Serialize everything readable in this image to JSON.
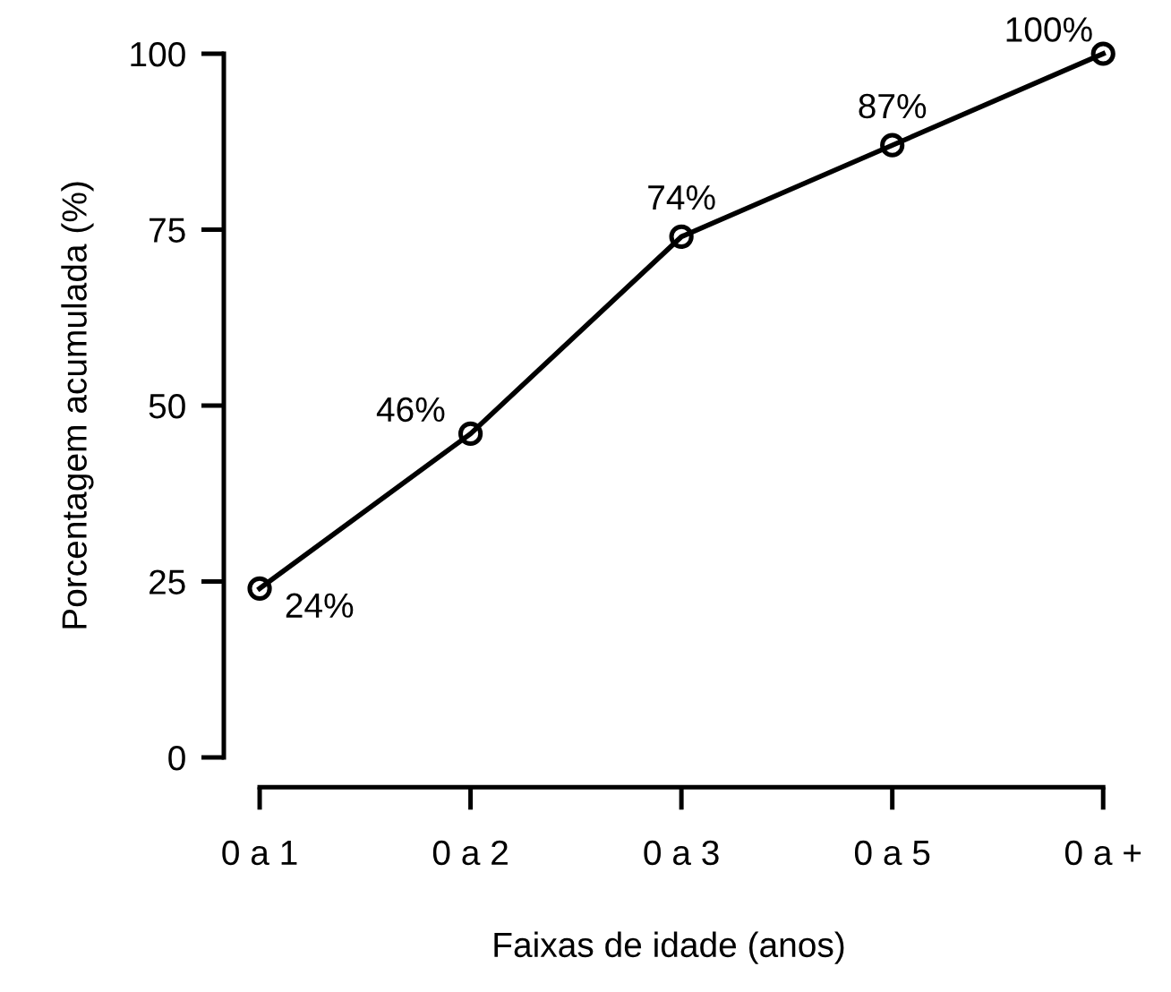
{
  "chart_data": {
    "type": "line",
    "xlabel": "Faixas de idade (anos)",
    "ylabel": "Porcentagem acumulada (%)",
    "categories": [
      "0 a 1",
      "0 a 2",
      "0 a 3",
      "0 a 5",
      "0 a +"
    ],
    "values": [
      24,
      46,
      74,
      87,
      100
    ],
    "value_labels": [
      "24%",
      "46%",
      "74%",
      "87%",
      "100%"
    ],
    "color": "#000000",
    "marker": "circle",
    "line_style": "solid",
    "ylim": [
      0,
      100
    ],
    "yticks": [
      0,
      25,
      50,
      75,
      100
    ],
    "grid": false,
    "legend": false
  }
}
